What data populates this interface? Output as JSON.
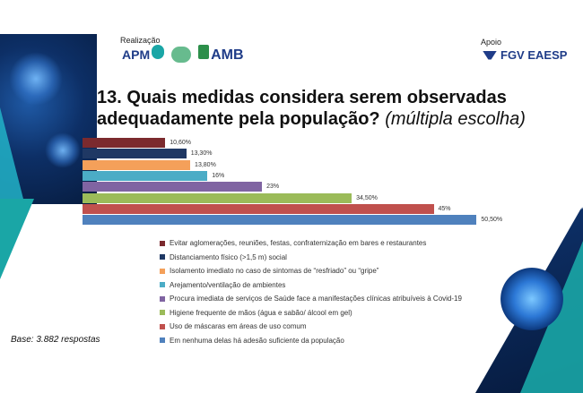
{
  "header": {
    "realizacao_label": "Realização",
    "apoio_label": "Apoio",
    "logo_apm": "APM",
    "logo_amb": "AMB",
    "logo_fgv": "FGV EAESP"
  },
  "title": {
    "main": "13. Quais medidas considera serem observadas adequadamente pela população?",
    "suffix": "(múltipla escolha)"
  },
  "footer": {
    "base": "Base: 3.882 respostas"
  },
  "chart_data": {
    "type": "bar",
    "orientation": "horizontal",
    "title": "",
    "xlim": [
      0,
      60
    ],
    "categories": [
      "Evitar aglomerações, reuniões, festas, confraternização em bares e restaurantes",
      "Distanciamento físico (>1,5 m) social",
      "Isolamento imediato no caso de sintomas de “resfriado” ou “gripe”",
      "Arejamento/ventilação de ambientes",
      "Procura imediata de serviços de Saúde face a manifestações clínicas atribuíveis à Covid-19",
      "Higiene frequente de mãos (água e sabão/ álcool em gel)",
      "Uso de máscaras em áreas de uso comum",
      "Em nenhuma delas há adesão suficiente da população"
    ],
    "values": [
      10.6,
      13.3,
      13.8,
      16,
      23,
      34.5,
      45,
      50.5
    ],
    "data_labels": [
      "10,60%",
      "13,30%",
      "13,80%",
      "16%",
      "23%",
      "34,50%",
      "45%",
      "50,50%"
    ],
    "colors": [
      "#7b2a2e",
      "#1f3864",
      "#f4a05a",
      "#4bacc6",
      "#8064a2",
      "#9bbb59",
      "#c0504d",
      "#4f81bd"
    ],
    "legend_position": "bottom"
  }
}
